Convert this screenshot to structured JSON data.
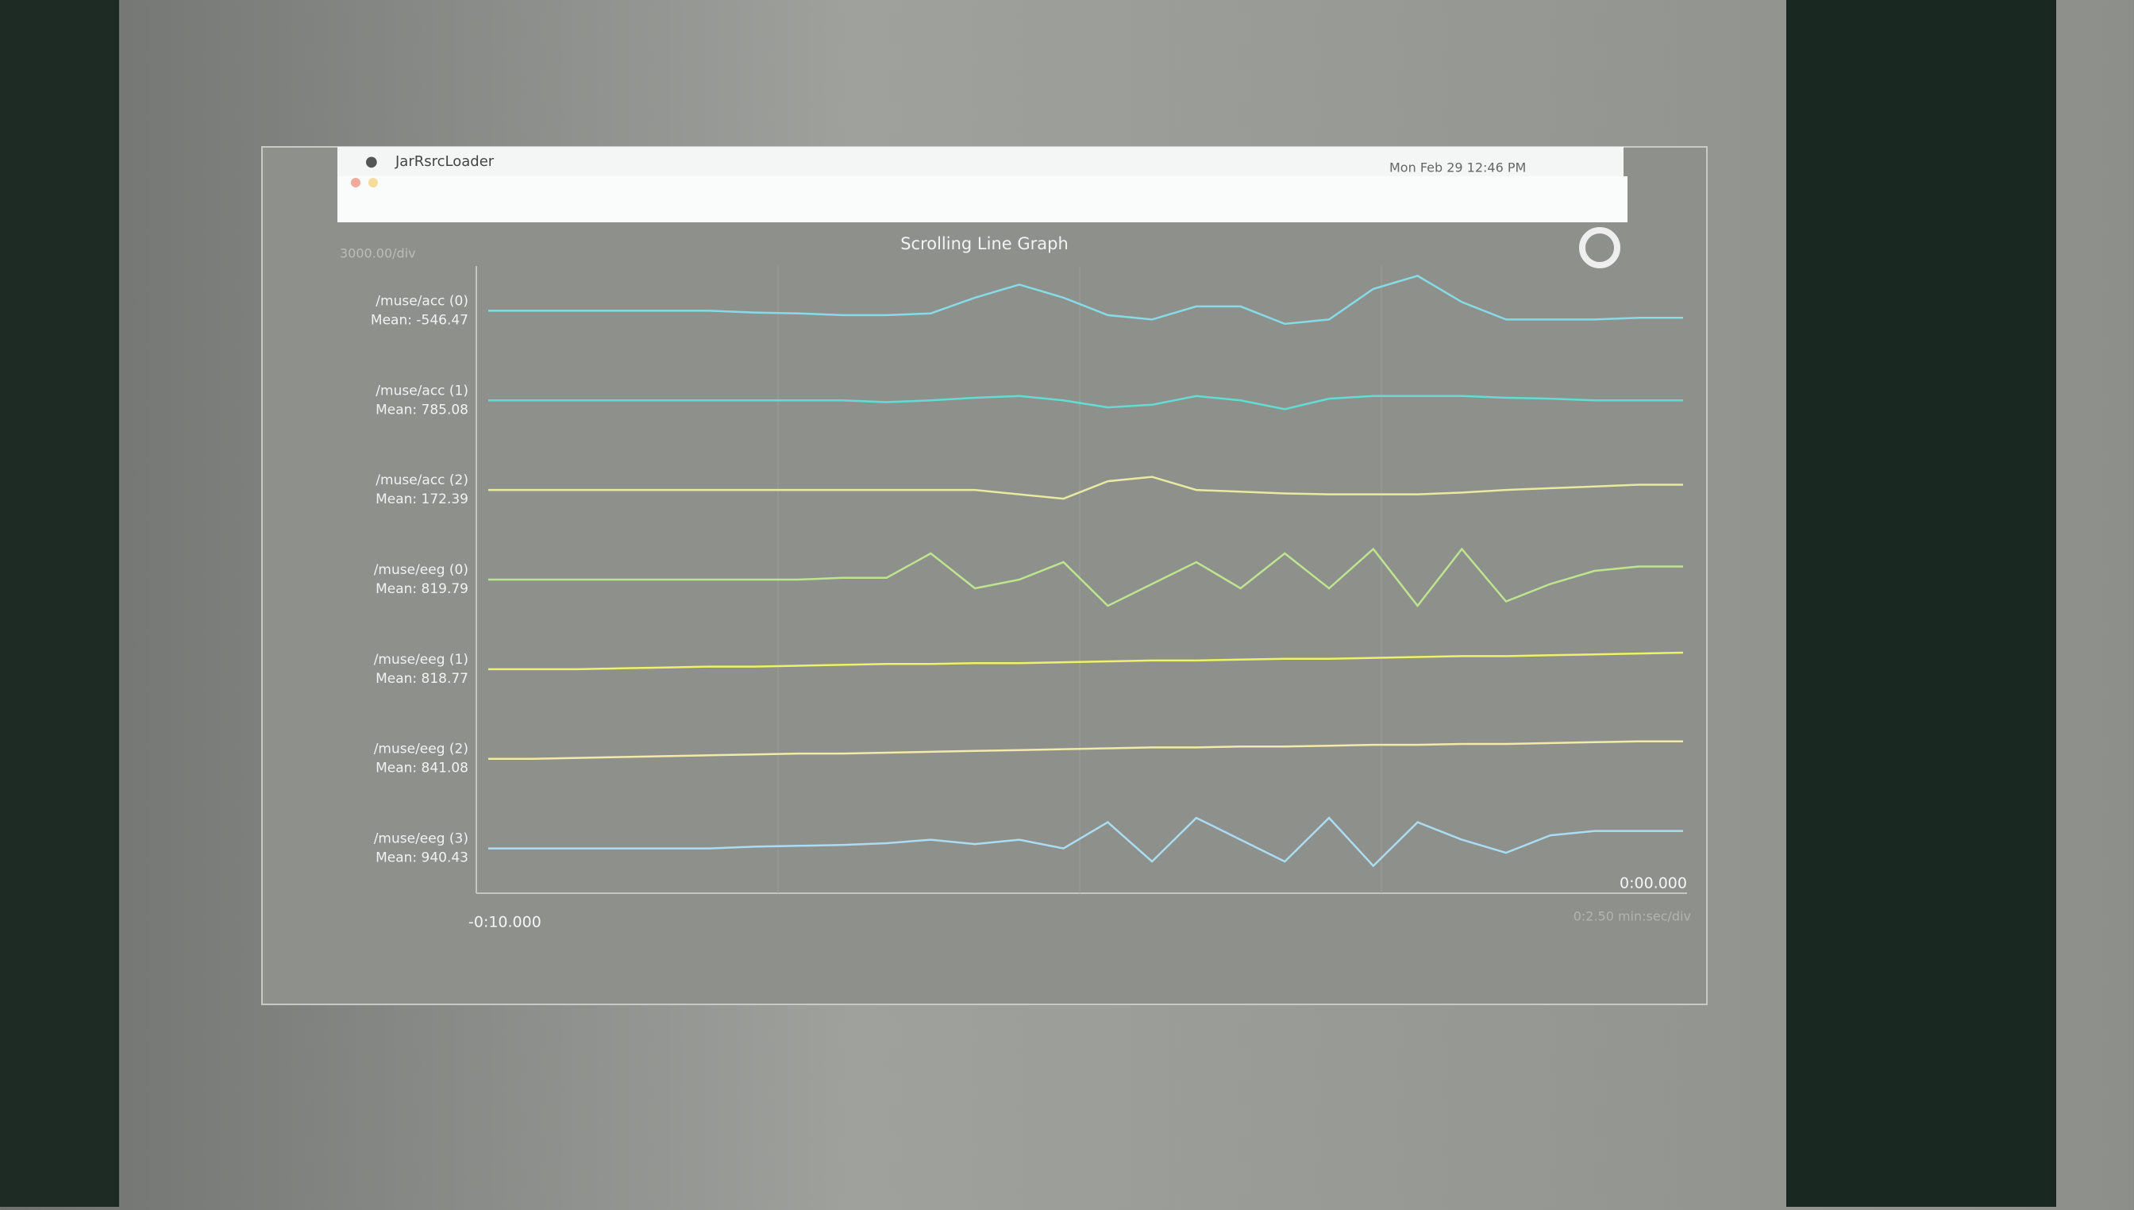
{
  "window": {
    "app_name": "JarRsrcLoader",
    "clock": "Mon Feb 29  12:46 PM"
  },
  "chart_data": {
    "type": "line",
    "title": "Scrolling Line Graph",
    "scale_label": "3000.00/div",
    "x_start_label": "-0:10.000",
    "x_end_label": "0:00.000",
    "x_scale_label": "0:2.50 min:sec/div",
    "series": [
      {
        "name": "/muse/acc (0)",
        "mean": "Mean: -546.47",
        "color": "#86dbe6",
        "values": [
          0,
          0,
          0,
          0,
          0,
          0,
          -0.02,
          -0.03,
          -0.05,
          -0.05,
          -0.03,
          0.15,
          0.3,
          0.15,
          -0.05,
          -0.1,
          0.05,
          0.05,
          -0.15,
          -0.1,
          0.25,
          0.4,
          0.1,
          -0.1,
          -0.1,
          -0.1,
          -0.08,
          -0.08
        ]
      },
      {
        "name": "/muse/acc (1)",
        "mean": "Mean: 785.08",
        "color": "#63dcd4",
        "values": [
          0,
          0,
          0,
          0,
          0,
          0,
          0,
          0,
          0,
          -0.02,
          0,
          0.03,
          0.05,
          0,
          -0.08,
          -0.05,
          0.05,
          0,
          -0.1,
          0.02,
          0.05,
          0.05,
          0.05,
          0.03,
          0.02,
          0,
          0,
          0
        ]
      },
      {
        "name": "/muse/acc (2)",
        "mean": "Mean: 172.39",
        "color": "#e8eaa2",
        "values": [
          0,
          0,
          0,
          0,
          0,
          0,
          0,
          0,
          0,
          0,
          0,
          0,
          -0.05,
          -0.1,
          0.1,
          0.15,
          0,
          -0.02,
          -0.04,
          -0.05,
          -0.05,
          -0.05,
          -0.03,
          0,
          0.02,
          0.04,
          0.06,
          0.06
        ]
      },
      {
        "name": "/muse/eeg (0)",
        "mean": "Mean: 819.79",
        "color": "#bde590",
        "values": [
          0,
          0,
          0,
          0,
          0,
          0,
          0,
          0,
          0.02,
          0.02,
          0.3,
          -0.1,
          0,
          0.2,
          -0.3,
          -0.05,
          0.2,
          -0.1,
          0.3,
          -0.1,
          0.35,
          -0.3,
          0.35,
          -0.25,
          -0.05,
          0.1,
          0.15,
          0.15
        ]
      },
      {
        "name": "/muse/eeg (1)",
        "mean": "Mean: 818.77",
        "color": "#eef266",
        "values": [
          0,
          0,
          0,
          0.01,
          0.02,
          0.03,
          0.03,
          0.04,
          0.05,
          0.06,
          0.06,
          0.07,
          0.07,
          0.08,
          0.09,
          0.1,
          0.1,
          0.11,
          0.12,
          0.12,
          0.13,
          0.14,
          0.15,
          0.15,
          0.16,
          0.17,
          0.18,
          0.19
        ]
      },
      {
        "name": "/muse/eeg (2)",
        "mean": "Mean: 841.08",
        "color": "#f2eaa8",
        "values": [
          0,
          0,
          0.01,
          0.02,
          0.03,
          0.04,
          0.05,
          0.06,
          0.06,
          0.07,
          0.08,
          0.09,
          0.1,
          0.11,
          0.12,
          0.13,
          0.13,
          0.14,
          0.14,
          0.15,
          0.16,
          0.16,
          0.17,
          0.17,
          0.18,
          0.19,
          0.2,
          0.2
        ]
      },
      {
        "name": "/muse/eeg (3)",
        "mean": "Mean: 940.43",
        "color": "#acdcf2",
        "values": [
          0,
          0,
          0,
          0,
          0,
          0,
          0.02,
          0.03,
          0.04,
          0.06,
          0.1,
          0.05,
          0.1,
          0,
          0.3,
          -0.15,
          0.35,
          0.1,
          -0.15,
          0.35,
          -0.2,
          0.3,
          0.1,
          -0.05,
          0.15,
          0.2,
          0.2,
          0.2
        ]
      }
    ]
  }
}
